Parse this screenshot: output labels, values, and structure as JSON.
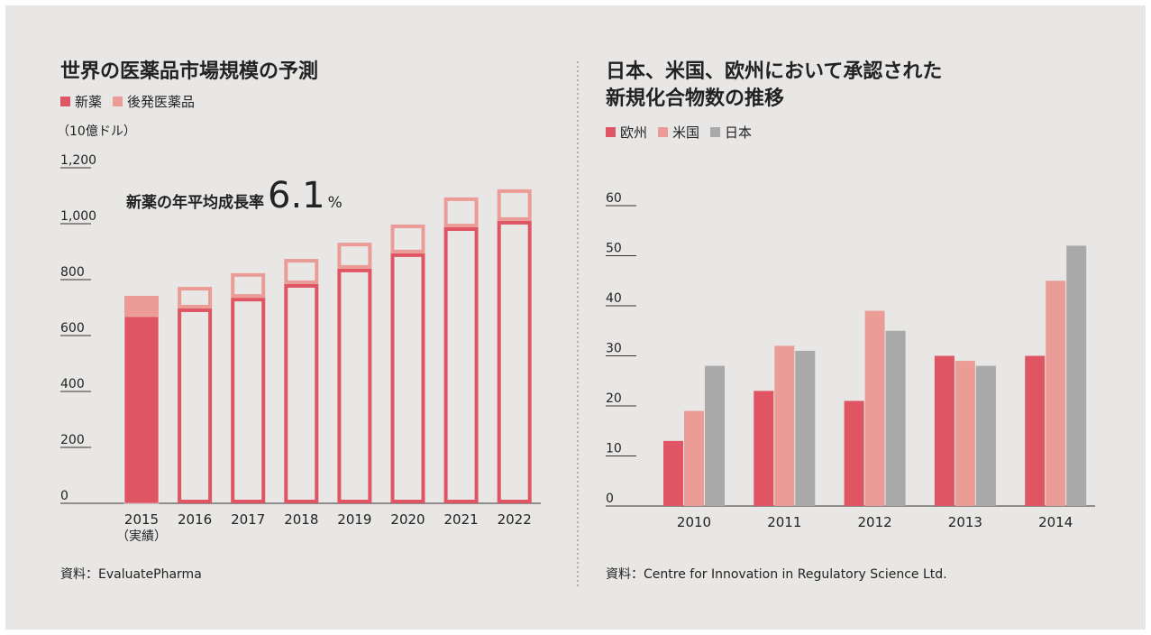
{
  "chart_data": [
    {
      "type": "bar",
      "stacked": true,
      "title": [
        "世界の医薬品市場規模の予測"
      ],
      "y_label": "（10億ドル）",
      "categories": [
        "2015",
        "2016",
        "2017",
        "2018",
        "2019",
        "2020",
        "2021",
        "2022"
      ],
      "category_notes": [
        "（実績）",
        null,
        null,
        null,
        null,
        null,
        null,
        null
      ],
      "filled": [
        true,
        false,
        false,
        false,
        false,
        false,
        false,
        false
      ],
      "series": [
        {
          "name": "新薬",
          "color": "#e05563",
          "values": [
            668,
            697,
            735,
            784,
            839,
            894,
            987,
            1010
          ]
        },
        {
          "name": "後発医薬品",
          "color": "#eb9c96",
          "values": [
            74,
            77,
            88,
            90,
            93,
            103,
            107,
            113
          ]
        }
      ],
      "ylim": [
        0,
        1200
      ],
      "yticks": [
        0,
        200,
        400,
        600,
        800,
        {
          "value": 1000,
          "label": "1,000"
        },
        {
          "value": 1200,
          "label": "1,200"
        }
      ],
      "annotation": {
        "text": "新薬の年平均成長率",
        "value": 6.1,
        "unit": "%"
      },
      "source": "資料：EvaluatePharma"
    },
    {
      "type": "bar",
      "stacked": false,
      "title": [
        "日本、米国、欧州において承認された",
        "新規化合物数の推移"
      ],
      "categories": [
        "2010",
        "2011",
        "2012",
        "2013",
        "2014"
      ],
      "series": [
        {
          "name": "欧州",
          "color": "#e05563",
          "values": [
            13,
            23,
            21,
            30,
            30
          ]
        },
        {
          "name": "米国",
          "color": "#eb9c96",
          "values": [
            19,
            32,
            39,
            29,
            45
          ]
        },
        {
          "name": "日本",
          "color": "#a9a9a9",
          "values": [
            28,
            31,
            35,
            28,
            52
          ]
        }
      ],
      "ylim": [
        0,
        60
      ],
      "yticks": [
        0,
        10,
        20,
        30,
        40,
        50,
        60
      ],
      "source": "資料：Centre for Innovation in Regulatory Science Ltd."
    }
  ]
}
